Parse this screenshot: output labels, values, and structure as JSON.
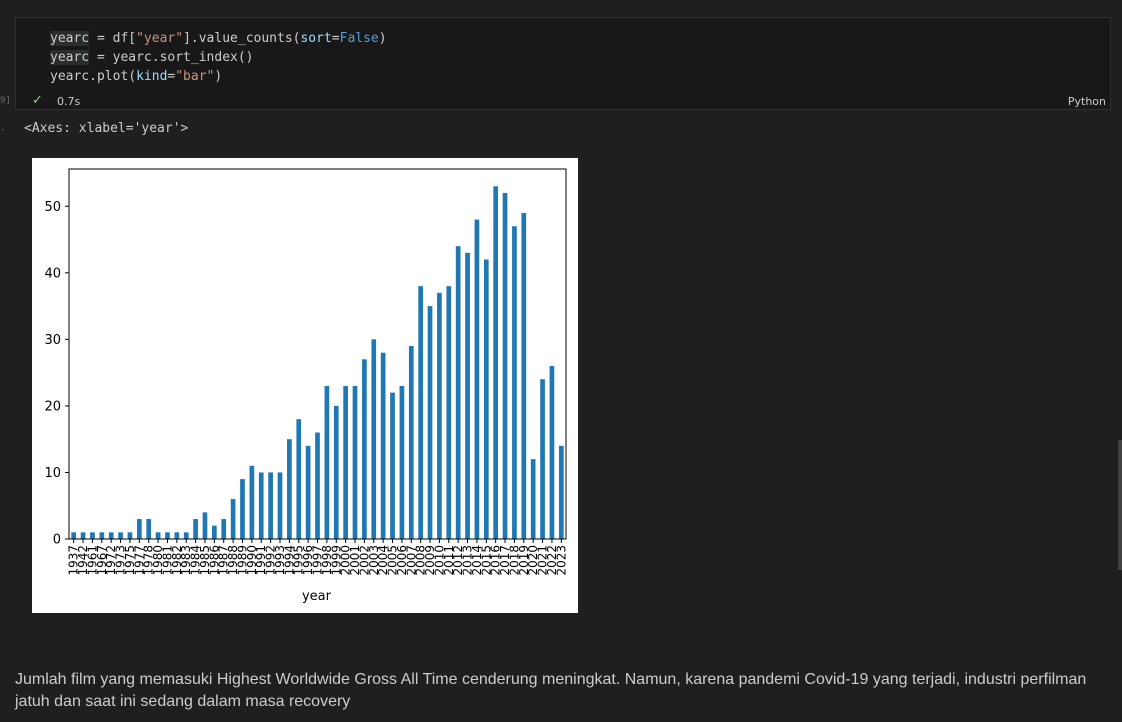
{
  "gutter": {
    "exec_marker": "9]"
  },
  "cell": {
    "lines": [
      [
        {
          "t": "yearc",
          "c": "hl"
        },
        {
          "t": " = df["
        },
        {
          "t": "\"year\"",
          "c": "tok-str"
        },
        {
          "t": "].value_counts("
        },
        {
          "t": "sort",
          "c": "tok-param"
        },
        {
          "t": "="
        },
        {
          "t": "False",
          "c": "tok-kw"
        },
        {
          "t": ")"
        }
      ],
      [
        {
          "t": "yearc",
          "c": "hl"
        },
        {
          "t": " = yearc.sort_index()"
        }
      ],
      [
        {
          "t": "yearc.plot("
        },
        {
          "t": "kind",
          "c": "tok-param"
        },
        {
          "t": "="
        },
        {
          "t": "\"bar\"",
          "c": "tok-str"
        },
        {
          "t": ")"
        }
      ]
    ],
    "status_time": "0.7s",
    "language": "Python"
  },
  "output": {
    "repr_text": "<Axes: xlabel='year'>"
  },
  "chart_data": {
    "type": "bar",
    "xlabel": "year",
    "ylabel": "",
    "ylim": [
      0,
      55.6
    ],
    "yticks": [
      0,
      10,
      20,
      30,
      40,
      50
    ],
    "bar_color": "#1f77b4",
    "categories": [
      "1937",
      "1942",
      "1961",
      "1967",
      "1972",
      "1973",
      "1975",
      "1977",
      "1978",
      "1980",
      "1981",
      "1982",
      "1983",
      "1984",
      "1985",
      "1986",
      "1987",
      "1988",
      "1989",
      "1990",
      "1991",
      "1992",
      "1993",
      "1994",
      "1995",
      "1996",
      "1997",
      "1998",
      "1999",
      "2000",
      "2001",
      "2002",
      "2003",
      "2004",
      "2005",
      "2006",
      "2007",
      "2008",
      "2009",
      "2010",
      "2011",
      "2012",
      "2013",
      "2014",
      "2015",
      "2016",
      "2017",
      "2018",
      "2019",
      "2020",
      "2021",
      "2022",
      "2023"
    ],
    "values": [
      1,
      1,
      1,
      1,
      1,
      1,
      1,
      3,
      3,
      1,
      1,
      1,
      1,
      3,
      4,
      2,
      3,
      6,
      9,
      11,
      10,
      10,
      10,
      15,
      18,
      14,
      16,
      23,
      20,
      23,
      23,
      27,
      30,
      28,
      22,
      23,
      29,
      38,
      35,
      37,
      38,
      44,
      43,
      48,
      42,
      53,
      52,
      47,
      49,
      12,
      24,
      26,
      14
    ]
  },
  "markdown": {
    "text": "Jumlah film yang memasuki Highest Worldwide Gross All Time cenderung meningkat. Namun, karena pandemi Covid-19 yang terjadi, industri perfilman jatuh dan saat ini sedang dalam masa recovery"
  },
  "colors": {
    "editor_bg": "#1f1f1f",
    "cell_bg": "#181818",
    "success": "#89d185"
  }
}
